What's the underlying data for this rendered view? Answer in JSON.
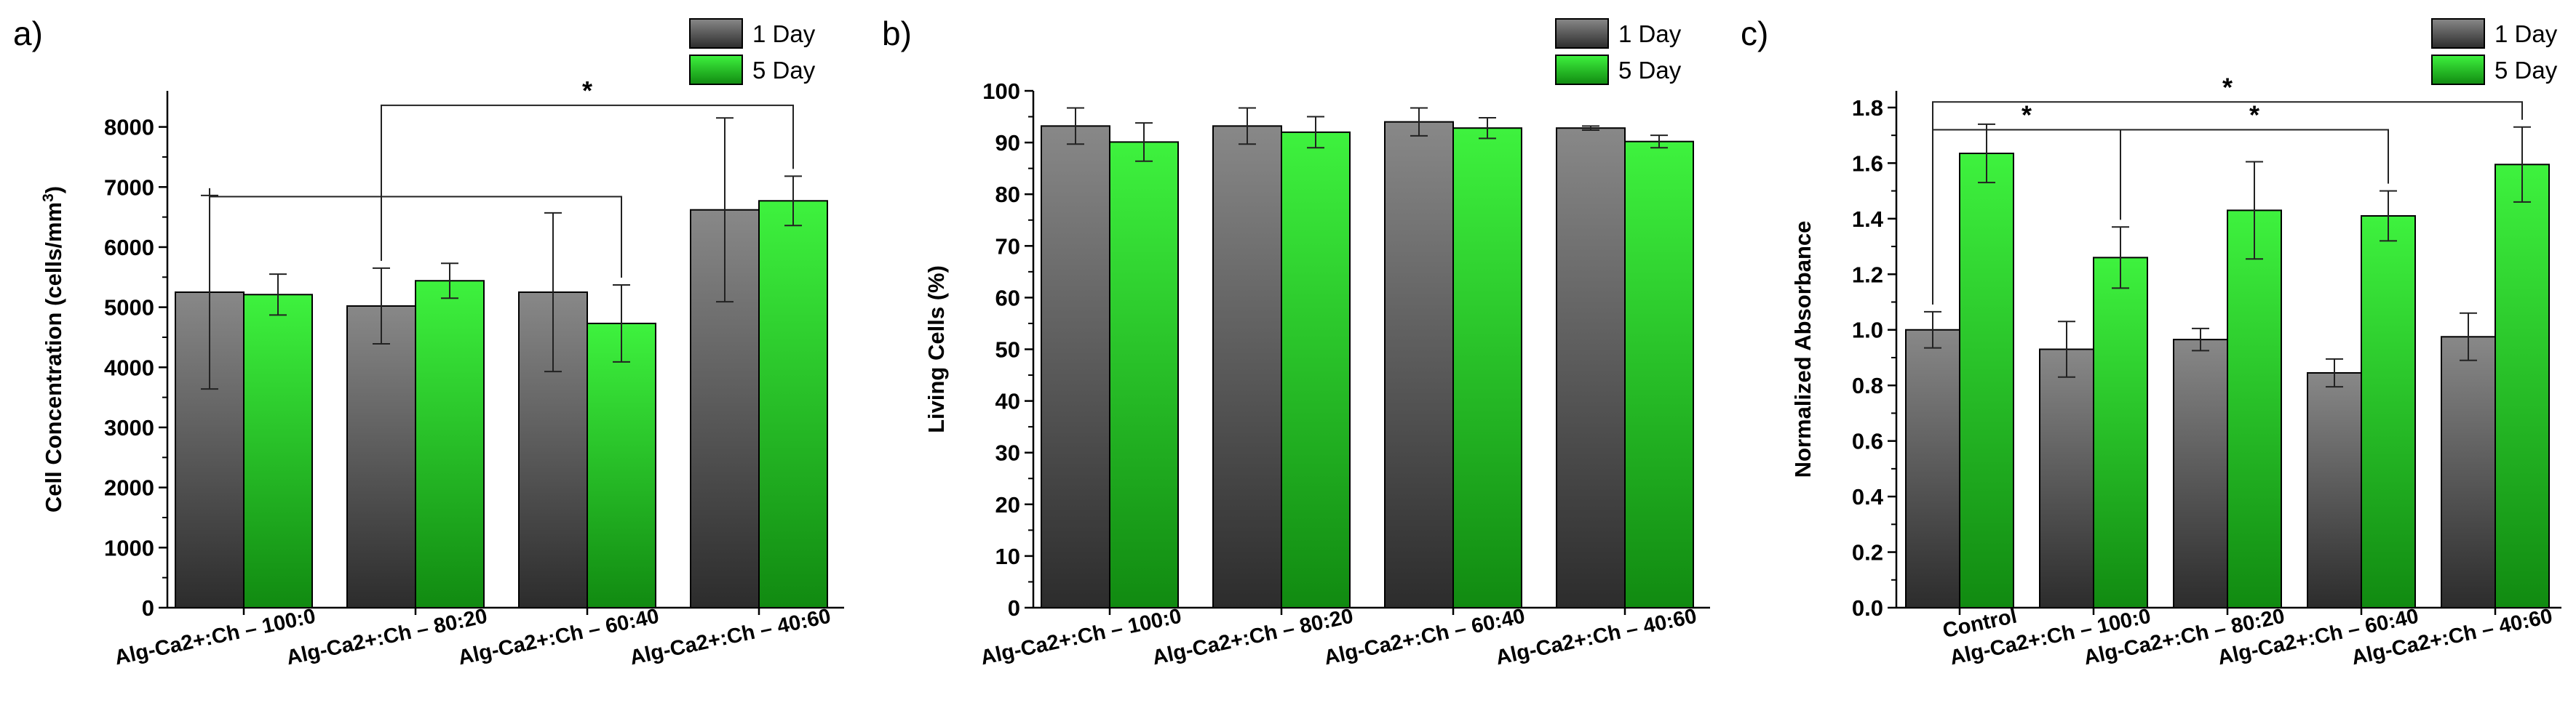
{
  "chart_data": [
    {
      "type": "bar",
      "panel_label": "a)",
      "title": "",
      "xlabel": "",
      "ylabel": "Cell Concentration (cells/mm",
      "ylabel_sup": "3",
      "ylabel_end": ")",
      "ylim": [
        0,
        8600
      ],
      "yticks": [
        0,
        1000,
        2000,
        3000,
        4000,
        5000,
        6000,
        7000,
        8000
      ],
      "ytick_labels": [
        "0",
        "1000",
        "2000",
        "3000",
        "4000",
        "5000",
        "6000",
        "7000",
        "8000"
      ],
      "grid": false,
      "legend": "top-right",
      "categories": [
        "Alg-Ca2+:Ch – 100:0",
        "Alg-Ca2+:Ch – 80:20",
        "Alg-Ca2+:Ch – 60:40",
        "Alg-Ca2+:Ch – 40:60"
      ],
      "series": [
        {
          "name": "1 Day",
          "color": "#555555",
          "values": [
            5250,
            5020,
            5250,
            6620
          ],
          "errors": [
            1610,
            630,
            1320,
            1530
          ]
        },
        {
          "name": "5 Day",
          "color": "#2fd12f",
          "values": [
            5210,
            5440,
            4730,
            6770
          ],
          "errors": [
            340,
            290,
            640,
            410
          ]
        }
      ],
      "significance": [
        {
          "from": [
            0,
            0
          ],
          "to": [
            2,
            1
          ],
          "label": "",
          "bar_y": 6840
        },
        {
          "from": [
            1,
            0
          ],
          "to": [
            3,
            1
          ],
          "label": "*",
          "bar_y": 8360
        }
      ]
    },
    {
      "type": "bar",
      "panel_label": "b)",
      "title": "",
      "xlabel": "",
      "ylabel": "Living Cells (%)",
      "ylim": [
        0,
        100
      ],
      "yticks": [
        0,
        10,
        20,
        30,
        40,
        50,
        60,
        70,
        80,
        90,
        100
      ],
      "ytick_labels": [
        "0",
        "10",
        "20",
        "30",
        "40",
        "50",
        "60",
        "70",
        "80",
        "90",
        "100"
      ],
      "grid": false,
      "legend": "top-right",
      "categories": [
        "Alg-Ca2+:Ch – 100:0",
        "Alg-Ca2+:Ch – 80:20",
        "Alg-Ca2+:Ch – 60:40",
        "Alg-Ca2+:Ch – 40:60"
      ],
      "series": [
        {
          "name": "1 Day",
          "color": "#555555",
          "values": [
            93.2,
            93.2,
            94.0,
            92.8
          ],
          "errors": [
            3.5,
            3.5,
            2.7,
            0.4
          ]
        },
        {
          "name": "5 Day",
          "color": "#2fd12f",
          "values": [
            90.1,
            92.0,
            92.8,
            90.2
          ],
          "errors": [
            3.7,
            3.0,
            2.0,
            1.2
          ]
        }
      ],
      "significance": []
    },
    {
      "type": "bar",
      "panel_label": "c)",
      "title": "",
      "xlabel": "",
      "ylabel": "Normalized Absorbance",
      "ylim": [
        0,
        1.86
      ],
      "yticks": [
        0,
        0.2,
        0.4,
        0.6,
        0.8,
        1.0,
        1.2,
        1.4,
        1.6,
        1.8
      ],
      "ytick_labels": [
        "0.0",
        "0.2",
        "0.4",
        "0.6",
        "0.8",
        "1.0",
        "1.2",
        "1.4",
        "1.6",
        "1.8"
      ],
      "grid": false,
      "legend": "top-right",
      "categories": [
        "Control",
        "Alg-Ca2+:Ch – 100:0",
        "Alg-Ca2+:Ch – 80:20",
        "Alg-Ca2+:Ch – 60:40",
        "Alg-Ca2+:Ch – 40:60"
      ],
      "series": [
        {
          "name": "1 Day",
          "color": "#555555",
          "values": [
            1.0,
            0.93,
            0.965,
            0.845,
            0.975
          ],
          "errors": [
            0.065,
            0.1,
            0.04,
            0.05,
            0.085
          ]
        },
        {
          "name": "5 Day",
          "color": "#2fd12f",
          "values": [
            1.635,
            1.26,
            1.43,
            1.41,
            1.595
          ],
          "errors": [
            0.105,
            0.11,
            0.175,
            0.09,
            0.135
          ]
        }
      ],
      "significance": [
        {
          "from": [
            0,
            0
          ],
          "to": [
            1,
            1
          ],
          "label": "*",
          "bar_y": 1.72
        },
        {
          "from": [
            0,
            0
          ],
          "to": [
            4,
            1
          ],
          "label": "*",
          "bar_y": 1.82
        },
        {
          "from": [
            1,
            1
          ],
          "to": [
            3,
            1
          ],
          "label": "*",
          "bar_y": 1.72
        }
      ]
    }
  ]
}
